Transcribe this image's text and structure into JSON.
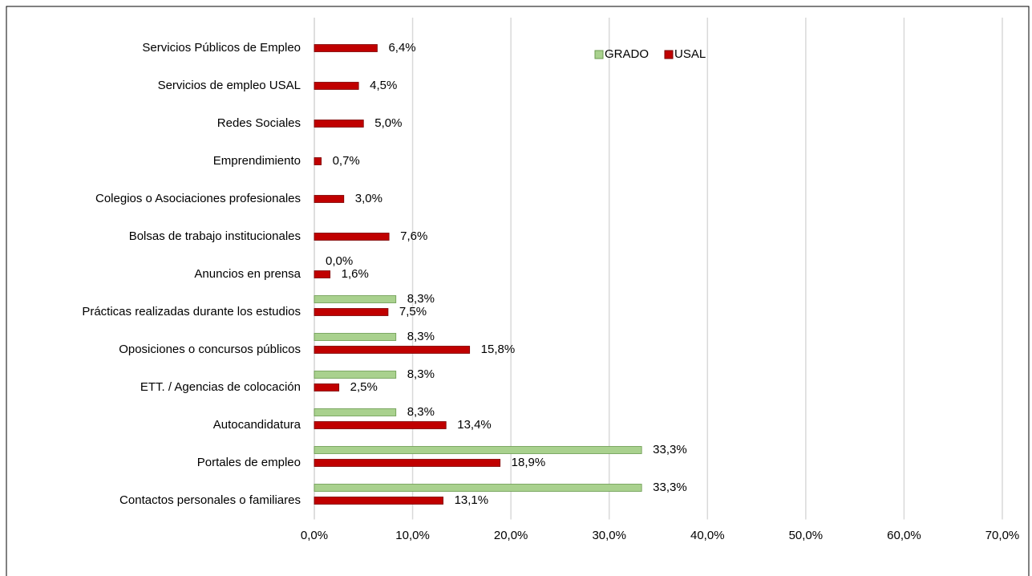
{
  "chart_data": {
    "type": "hbar",
    "categories": [
      "Servicios Públicos de Empleo",
      "Servicios de empleo USAL",
      "Redes Sociales",
      "Emprendimiento",
      "Colegios o Asociaciones profesionales",
      "Bolsas de trabajo institucionales",
      "Anuncios en prensa",
      "Prácticas realizadas durante los estudios",
      "Oposiciones o concursos públicos",
      "ETT. / Agencias de colocación",
      "Autocandidatura",
      "Portales de empleo",
      "Contactos personales o familiares"
    ],
    "series": [
      {
        "name": "GRADO",
        "color": "#a9d18e",
        "values": [
          null,
          null,
          null,
          null,
          null,
          null,
          0,
          8.3,
          8.3,
          8.3,
          8.3,
          33.3,
          33.3
        ],
        "value_labels": [
          null,
          null,
          null,
          null,
          null,
          null,
          "0,0%",
          "8,3%",
          "8,3%",
          "8,3%",
          "8,3%",
          "33,3%",
          "33,3%"
        ]
      },
      {
        "name": "USAL",
        "color": "#c00000",
        "values": [
          6.4,
          4.5,
          5.0,
          0.7,
          3.0,
          7.6,
          1.6,
          7.5,
          15.8,
          2.5,
          13.4,
          18.9,
          13.1
        ],
        "value_labels": [
          "6,4%",
          "4,5%",
          "5,0%",
          "0,7%",
          "3,0%",
          "7,6%",
          "1,6%",
          "7,5%",
          "15,8%",
          "2,5%",
          "13,4%",
          "18,9%",
          "13,1%"
        ]
      }
    ],
    "xlim": [
      0,
      70
    ],
    "xticks": [
      {
        "value": 0,
        "label": "0,0%"
      },
      {
        "value": 10,
        "label": "10,0%"
      },
      {
        "value": 20,
        "label": "20,0%"
      },
      {
        "value": 30,
        "label": "30,0%"
      },
      {
        "value": 40,
        "label": "40,0%"
      },
      {
        "value": 50,
        "label": "50,0%"
      },
      {
        "value": 60,
        "label": "60,0%"
      },
      {
        "value": 70,
        "label": "70,0%"
      }
    ],
    "grid": true
  }
}
